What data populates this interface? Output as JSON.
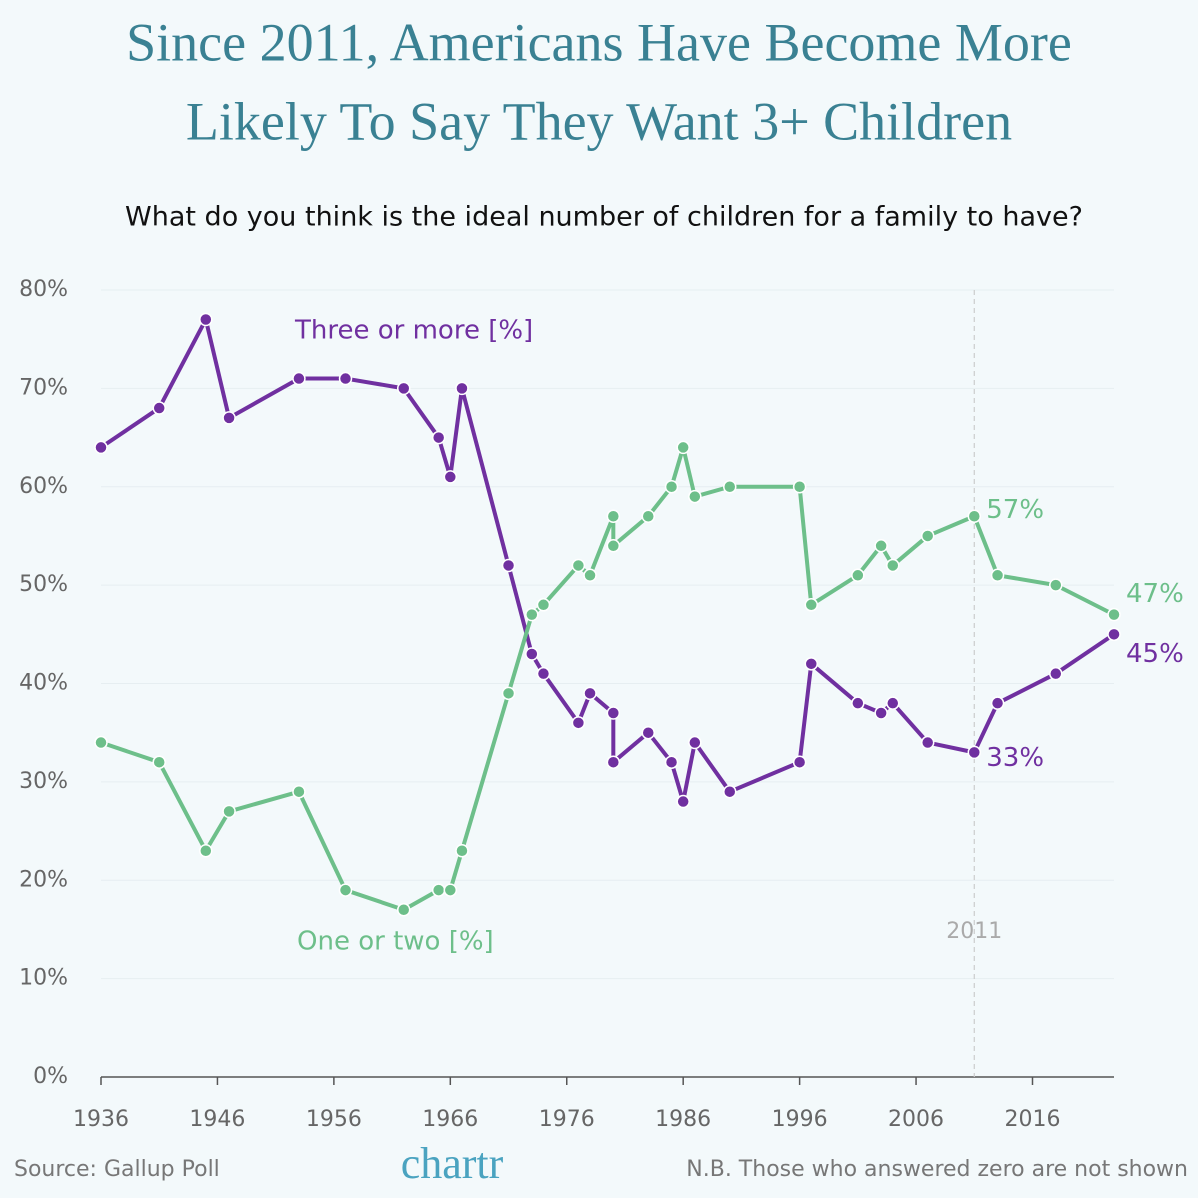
{
  "chart_data": {
    "type": "line",
    "title_lines": [
      "Since 2011, Americans Have Become More",
      "Likely To Say They Want 3+ Children"
    ],
    "subtitle": "What do you think is the ideal number of children for a family to have?",
    "x": [
      1936,
      1941,
      1945,
      1947,
      1953,
      1957,
      1962,
      1965,
      1966,
      1967,
      1971,
      1973,
      1974,
      1977,
      1978,
      1980,
      1980,
      1983,
      1985,
      1986,
      1987,
      1990,
      1996,
      1997,
      2001,
      2003,
      2004,
      2007,
      2011,
      2013,
      2018,
      2023
    ],
    "series": [
      {
        "name": "Three or more [%]",
        "color": "#7030a0",
        "values": [
          64,
          68,
          77,
          67,
          71,
          71,
          70,
          65,
          61,
          70,
          52,
          43,
          41,
          36,
          39,
          37,
          32,
          35,
          32,
          28,
          34,
          29,
          32,
          42,
          38,
          37,
          38,
          34,
          33,
          38,
          41,
          45
        ],
        "value_labels": [
          null,
          null,
          null,
          null,
          null,
          null,
          null,
          null,
          null,
          null,
          null,
          null,
          null,
          null,
          null,
          null,
          null,
          null,
          null,
          null,
          null,
          null,
          null,
          null,
          null,
          null,
          null,
          null,
          "33%",
          null,
          null,
          "45%"
        ]
      },
      {
        "name": "One or two [%]",
        "color": "#6dbf8a",
        "values": [
          34,
          32,
          23,
          27,
          29,
          19,
          17,
          19,
          19,
          23,
          39,
          47,
          48,
          52,
          51,
          57,
          54,
          57,
          60,
          64,
          59,
          60,
          60,
          48,
          51,
          54,
          52,
          55,
          57,
          51,
          50,
          47
        ],
        "value_labels": [
          null,
          null,
          null,
          null,
          null,
          null,
          null,
          null,
          null,
          null,
          null,
          null,
          null,
          null,
          null,
          null,
          null,
          null,
          null,
          null,
          null,
          null,
          null,
          null,
          null,
          null,
          null,
          null,
          "57%",
          null,
          null,
          "47%"
        ]
      }
    ],
    "xlim": [
      1936,
      2023
    ],
    "xticks": [
      1936,
      1946,
      1956,
      1966,
      1976,
      1986,
      1996,
      2006,
      2016
    ],
    "ylim": [
      0,
      80
    ],
    "yticks": [
      {
        "value": 0,
        "label": "0%"
      },
      {
        "value": 10,
        "label": "10%"
      },
      {
        "value": 20,
        "label": "20%"
      },
      {
        "value": 30,
        "label": "30%"
      },
      {
        "value": 40,
        "label": "40%"
      },
      {
        "value": 50,
        "label": "50%"
      },
      {
        "value": 60,
        "label": "60%"
      },
      {
        "value": 70,
        "label": "70%"
      },
      {
        "value": 80,
        "label": "80%"
      }
    ],
    "grid": true,
    "reference_line": {
      "value": 2011,
      "label": "2011"
    },
    "source": "Source: Gallup Poll",
    "brand": "chartr",
    "note": "N.B. Those who answered zero are not shown"
  }
}
